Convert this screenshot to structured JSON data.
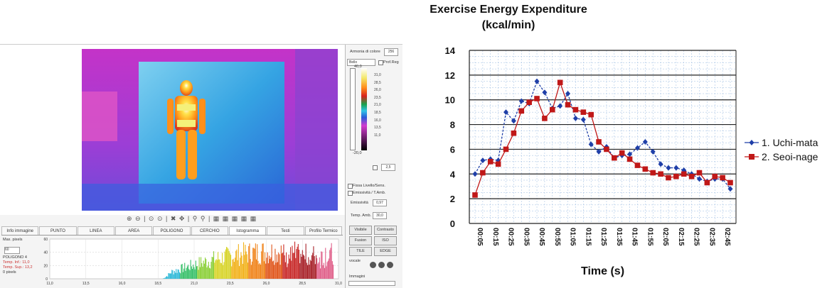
{
  "software": {
    "palette_label": "Armonia di colore",
    "palette_value": "256",
    "palette_name": "Bello",
    "profile_label": "Prof.Reg",
    "scale_top": "40,0",
    "scale_bottom": "-20,0",
    "scale_ticks": [
      "31,0",
      "28,5",
      "26,0",
      "23,5",
      "21,0",
      "18,5",
      "16,0",
      "13,5",
      "11,0"
    ],
    "spin_value": "2,5",
    "fix_label": "Fissa Livello/Sens.",
    "emiss_temp_label": "Emissività / T.Amb.",
    "emissivity_label": "Emissività",
    "emissivity_value": "0,97",
    "temp_amb_label": "Temp. Amb.",
    "temp_amb_value": "30,0",
    "buttons": [
      "Visibile",
      "Contrasto",
      "Fusion",
      "ISO",
      "TILE",
      "EDGE"
    ],
    "vocal_label": "vocale",
    "images_label": "Immagini",
    "toolbar_glyphs": "⊕ ⊖ | ⊙ ⊙ | ✖ ✥ | ⚲ ⚲ | ▦ ▦ ▦ ▦ ▦",
    "tabs": [
      "Info immagine",
      "PUNTO",
      "LINEA",
      "AREA",
      "POLIGONO",
      "CERCHIO",
      "Istogramma",
      "Testi",
      "Profilo Termico"
    ],
    "left_info": {
      "title": "Max. pixels",
      "spin": "60",
      "lines": [
        "POLIGONO 4",
        "Temp. Inf.: 11,0",
        "Temp. Sup.: 13,2",
        "0 pixels"
      ]
    },
    "histogram": {
      "y_ticks": [
        "60",
        "40",
        "20",
        "0"
      ],
      "x_ticks": [
        "11,0",
        "13,5",
        "16,0",
        "18,5",
        "21,0",
        "23,5",
        "26,0",
        "28,5",
        "31,0"
      ]
    }
  },
  "chart_data": {
    "type": "line",
    "title": "Exercise Energy Expenditure",
    "subtitle": "(kcal/min)",
    "xlabel": "Time (s)",
    "ylabel": "",
    "ylim": [
      0,
      14
    ],
    "y_ticks": [
      0,
      2,
      4,
      6,
      8,
      10,
      12,
      14
    ],
    "categories": [
      "00:05",
      "00:10",
      "00:15",
      "00:20",
      "00:25",
      "00:30",
      "00:35",
      "00:40",
      "00:45",
      "00:50",
      "00:55",
      "01:00",
      "01:05",
      "01:10",
      "01:15",
      "01:20",
      "01:25",
      "01:30",
      "01:35",
      "01:40",
      "01:45",
      "01:50",
      "01:55",
      "02:00",
      "02:05",
      "02:10",
      "02:15",
      "02:20",
      "02:25",
      "02:30",
      "02:35",
      "02:40",
      "02:45",
      "02:50"
    ],
    "tick_labels": [
      "00:05",
      "00:15",
      "00:25",
      "00:35",
      "00:45",
      "00:55",
      "01:05",
      "01:15",
      "01:25",
      "01:35",
      "01:45",
      "01:55",
      "02:05",
      "02:15",
      "02:25",
      "02:35",
      "02:45"
    ],
    "series": [
      {
        "name": "1. Uchi-mata",
        "color": "#1f3fa8",
        "marker": "diamond",
        "values": [
          4.0,
          5.1,
          5.2,
          5.1,
          9.0,
          8.3,
          9.9,
          9.7,
          11.5,
          10.6,
          9.3,
          9.5,
          10.5,
          8.5,
          8.4,
          6.4,
          5.8,
          6.2,
          5.3,
          5.5,
          5.6,
          6.1,
          6.6,
          5.8,
          4.8,
          4.5,
          4.5,
          4.3,
          4.0,
          3.6,
          3.4,
          3.6,
          3.6,
          2.8
        ]
      },
      {
        "name": "2. Seoi-nage",
        "color": "#c01818",
        "marker": "square",
        "values": [
          2.3,
          4.1,
          5.0,
          4.8,
          6.0,
          7.3,
          9.1,
          9.8,
          10.1,
          8.5,
          9.2,
          11.4,
          9.6,
          9.2,
          9.0,
          8.8,
          6.6,
          6.0,
          5.3,
          5.7,
          5.2,
          4.7,
          4.4,
          4.1,
          4.0,
          3.7,
          3.8,
          4.0,
          3.8,
          4.1,
          3.3,
          3.8,
          3.7,
          3.3
        ]
      }
    ],
    "legend_position": "right",
    "grid": true
  }
}
